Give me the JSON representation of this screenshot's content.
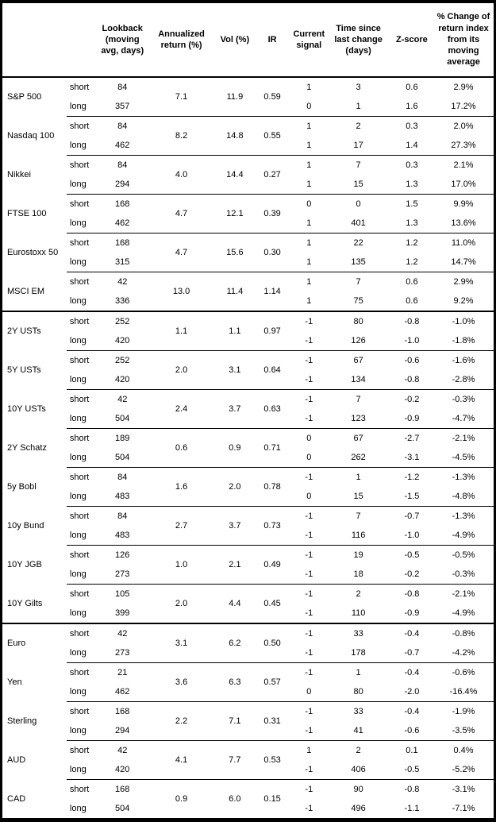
{
  "table": {
    "columns": {
      "asset": "",
      "leg": "",
      "lookback": "Lookback (moving avg, days)",
      "annualized_return": "Annualized return (%)",
      "vol": "Vol (%)",
      "ir": "IR",
      "current_signal": "Current signal",
      "time_since": "Time since last change (days)",
      "z_score": "Z-score",
      "pct_change": "% Change of return index from its moving average"
    },
    "leg_labels": {
      "short": "short",
      "long": "long"
    },
    "colors": {
      "border": "#000000",
      "text": "#000000",
      "background": "#ffffff"
    },
    "sections": [
      [
        {
          "name": "S&P 500",
          "annualized_return": "7.1",
          "vol": "11.9",
          "ir": "0.59",
          "short": {
            "lookback": "84",
            "signal": "1",
            "time": "3",
            "z": "0.6",
            "change": "2.9%"
          },
          "long": {
            "lookback": "357",
            "signal": "0",
            "time": "1",
            "z": "1.6",
            "change": "17.2%"
          }
        },
        {
          "name": "Nasdaq 100",
          "annualized_return": "8.2",
          "vol": "14.8",
          "ir": "0.55",
          "short": {
            "lookback": "84",
            "signal": "1",
            "time": "2",
            "z": "0.3",
            "change": "2.0%"
          },
          "long": {
            "lookback": "462",
            "signal": "1",
            "time": "17",
            "z": "1.4",
            "change": "27.3%"
          }
        },
        {
          "name": "Nikkei",
          "annualized_return": "4.0",
          "vol": "14.4",
          "ir": "0.27",
          "short": {
            "lookback": "84",
            "signal": "1",
            "time": "7",
            "z": "0.3",
            "change": "2.1%"
          },
          "long": {
            "lookback": "294",
            "signal": "1",
            "time": "15",
            "z": "1.3",
            "change": "17.0%"
          }
        },
        {
          "name": "FTSE 100",
          "annualized_return": "4.7",
          "vol": "12.1",
          "ir": "0.39",
          "short": {
            "lookback": "168",
            "signal": "0",
            "time": "0",
            "z": "1.5",
            "change": "9.9%"
          },
          "long": {
            "lookback": "462",
            "signal": "1",
            "time": "401",
            "z": "1.3",
            "change": "13.6%"
          }
        },
        {
          "name": "Eurostoxx 50",
          "annualized_return": "4.7",
          "vol": "15.6",
          "ir": "0.30",
          "short": {
            "lookback": "168",
            "signal": "1",
            "time": "22",
            "z": "1.2",
            "change": "11.0%"
          },
          "long": {
            "lookback": "315",
            "signal": "1",
            "time": "135",
            "z": "1.2",
            "change": "14.7%"
          }
        },
        {
          "name": "MSCI EM",
          "annualized_return": "13.0",
          "vol": "11.4",
          "ir": "1.14",
          "short": {
            "lookback": "42",
            "signal": "1",
            "time": "7",
            "z": "0.6",
            "change": "2.9%"
          },
          "long": {
            "lookback": "336",
            "signal": "1",
            "time": "75",
            "z": "0.6",
            "change": "9.2%"
          }
        }
      ],
      [
        {
          "name": "2Y USTs",
          "annualized_return": "1.1",
          "vol": "1.1",
          "ir": "0.97",
          "short": {
            "lookback": "252",
            "signal": "-1",
            "time": "80",
            "z": "-0.8",
            "change": "-1.0%"
          },
          "long": {
            "lookback": "420",
            "signal": "-1",
            "time": "126",
            "z": "-1.0",
            "change": "-1.8%"
          }
        },
        {
          "name": "5Y USTs",
          "annualized_return": "2.0",
          "vol": "3.1",
          "ir": "0.64",
          "short": {
            "lookback": "252",
            "signal": "-1",
            "time": "67",
            "z": "-0.6",
            "change": "-1.6%"
          },
          "long": {
            "lookback": "420",
            "signal": "-1",
            "time": "134",
            "z": "-0.8",
            "change": "-2.8%"
          }
        },
        {
          "name": "10Y USTs",
          "annualized_return": "2.4",
          "vol": "3.7",
          "ir": "0.63",
          "short": {
            "lookback": "42",
            "signal": "-1",
            "time": "7",
            "z": "-0.2",
            "change": "-0.3%"
          },
          "long": {
            "lookback": "504",
            "signal": "-1",
            "time": "123",
            "z": "-0.9",
            "change": "-4.7%"
          }
        },
        {
          "name": "2Y Schatz",
          "annualized_return": "0.6",
          "vol": "0.9",
          "ir": "0.71",
          "short": {
            "lookback": "189",
            "signal": "0",
            "time": "67",
            "z": "-2.7",
            "change": "-2.1%"
          },
          "long": {
            "lookback": "504",
            "signal": "0",
            "time": "262",
            "z": "-3.1",
            "change": "-4.5%"
          }
        },
        {
          "name": "5y Bobl",
          "annualized_return": "1.6",
          "vol": "2.0",
          "ir": "0.78",
          "short": {
            "lookback": "84",
            "signal": "-1",
            "time": "1",
            "z": "-1.2",
            "change": "-1.3%"
          },
          "long": {
            "lookback": "483",
            "signal": "0",
            "time": "15",
            "z": "-1.5",
            "change": "-4.8%"
          }
        },
        {
          "name": "10y Bund",
          "annualized_return": "2.7",
          "vol": "3.7",
          "ir": "0.73",
          "short": {
            "lookback": "84",
            "signal": "-1",
            "time": "7",
            "z": "-0.7",
            "change": "-1.3%"
          },
          "long": {
            "lookback": "483",
            "signal": "-1",
            "time": "116",
            "z": "-1.0",
            "change": "-4.9%"
          }
        },
        {
          "name": "10Y JGB",
          "annualized_return": "1.0",
          "vol": "2.1",
          "ir": "0.49",
          "short": {
            "lookback": "126",
            "signal": "-1",
            "time": "19",
            "z": "-0.5",
            "change": "-0.5%"
          },
          "long": {
            "lookback": "273",
            "signal": "-1",
            "time": "18",
            "z": "-0.2",
            "change": "-0.3%"
          }
        },
        {
          "name": "10Y Gilts",
          "annualized_return": "2.0",
          "vol": "4.4",
          "ir": "0.45",
          "short": {
            "lookback": "105",
            "signal": "-1",
            "time": "2",
            "z": "-0.8",
            "change": "-2.1%"
          },
          "long": {
            "lookback": "399",
            "signal": "-1",
            "time": "110",
            "z": "-0.9",
            "change": "-4.9%"
          }
        }
      ],
      [
        {
          "name": "Euro",
          "annualized_return": "3.1",
          "vol": "6.2",
          "ir": "0.50",
          "short": {
            "lookback": "42",
            "signal": "-1",
            "time": "33",
            "z": "-0.4",
            "change": "-0.8%"
          },
          "long": {
            "lookback": "273",
            "signal": "-1",
            "time": "178",
            "z": "-0.7",
            "change": "-4.2%"
          }
        },
        {
          "name": "Yen",
          "annualized_return": "3.6",
          "vol": "6.3",
          "ir": "0.57",
          "short": {
            "lookback": "21",
            "signal": "-1",
            "time": "1",
            "z": "-0.4",
            "change": "-0.6%"
          },
          "long": {
            "lookback": "462",
            "signal": "0",
            "time": "80",
            "z": "-2.0",
            "change": "-16.4%"
          }
        },
        {
          "name": "Sterling",
          "annualized_return": "2.2",
          "vol": "7.1",
          "ir": "0.31",
          "short": {
            "lookback": "168",
            "signal": "-1",
            "time": "33",
            "z": "-0.4",
            "change": "-1.9%"
          },
          "long": {
            "lookback": "294",
            "signal": "-1",
            "time": "41",
            "z": "-0.6",
            "change": "-3.5%"
          }
        },
        {
          "name": "AUD",
          "annualized_return": "4.1",
          "vol": "7.7",
          "ir": "0.53",
          "short": {
            "lookback": "42",
            "signal": "1",
            "time": "2",
            "z": "0.1",
            "change": "0.4%"
          },
          "long": {
            "lookback": "420",
            "signal": "-1",
            "time": "406",
            "z": "-0.5",
            "change": "-5.2%"
          }
        },
        {
          "name": "CAD",
          "annualized_return": "0.9",
          "vol": "6.0",
          "ir": "0.15",
          "short": {
            "lookback": "168",
            "signal": "-1",
            "time": "90",
            "z": "-0.8",
            "change": "-3.1%"
          },
          "long": {
            "lookback": "504",
            "signal": "-1",
            "time": "496",
            "z": "-1.1",
            "change": "-7.1%"
          }
        }
      ]
    ]
  }
}
